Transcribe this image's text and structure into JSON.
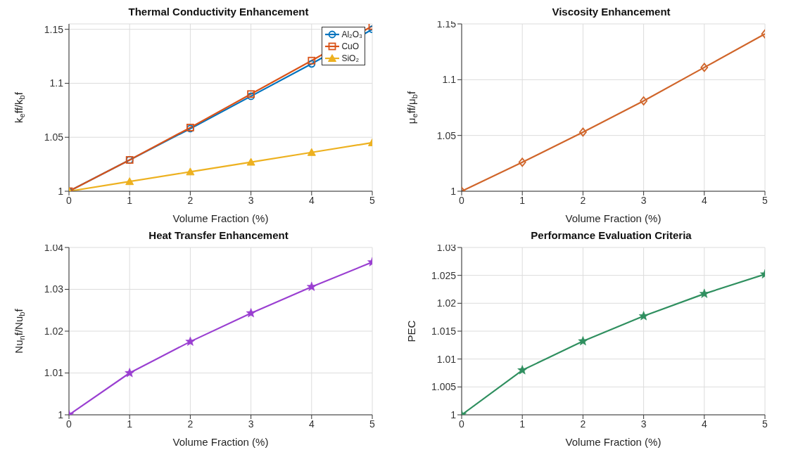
{
  "chart_data": [
    {
      "type": "line",
      "title": "Thermal Conductivity Enhancement",
      "xlabel": "Volume Fraction (%)",
      "ylabel": "k$_{e}$ff/k$_{b}$f",
      "x": [
        0,
        1,
        2,
        3,
        4,
        5
      ],
      "xlim": [
        0,
        5
      ],
      "xticks": [
        0,
        1,
        2,
        3,
        4,
        5
      ],
      "ylim": [
        1,
        1.155
      ],
      "yticks": [
        1,
        1.05,
        1.1,
        1.15
      ],
      "grid": true,
      "legend": "top right",
      "series": [
        {
          "name": "Al₂O₃",
          "color": "#0072bd",
          "marker": "circle",
          "values": [
            1,
            1.029,
            1.058,
            1.088,
            1.118,
            1.15
          ]
        },
        {
          "name": "CuO",
          "color": "#d95319",
          "marker": "square",
          "values": [
            1,
            1.029,
            1.059,
            1.09,
            1.121,
            1.153
          ]
        },
        {
          "name": "SiO₂",
          "color": "#edb120",
          "marker": "triangle",
          "values": [
            1,
            1.009,
            1.018,
            1.027,
            1.036,
            1.045
          ]
        }
      ]
    },
    {
      "type": "line",
      "title": "Viscosity Enhancement",
      "xlabel": "Volume Fraction (%)",
      "ylabel": "μ$_{e}$ff/μ$_{b}$f",
      "x": [
        0,
        1,
        2,
        3,
        4,
        5
      ],
      "xlim": [
        0,
        5
      ],
      "xticks": [
        0,
        1,
        2,
        3,
        4,
        5
      ],
      "ylim": [
        1,
        1.15
      ],
      "yticks": [
        1,
        1.05,
        1.1,
        1.15
      ],
      "grid": true,
      "series": [
        {
          "color": "#d0652a",
          "marker": "diamond",
          "values": [
            1,
            1.026,
            1.053,
            1.081,
            1.111,
            1.141
          ]
        }
      ]
    },
    {
      "type": "line",
      "title": "Heat Transfer Enhancement",
      "xlabel": "Volume Fraction (%)",
      "ylabel": "Nu$_{n}$f/Nu$_{b}$f",
      "x": [
        0,
        1,
        2,
        3,
        4,
        5
      ],
      "xlim": [
        0,
        5
      ],
      "xticks": [
        0,
        1,
        2,
        3,
        4,
        5
      ],
      "ylim": [
        1,
        1.04
      ],
      "yticks": [
        1,
        1.01,
        1.02,
        1.03,
        1.04
      ],
      "grid": true,
      "series": [
        {
          "color": "#9a3fd1",
          "marker": "star",
          "values": [
            1,
            1.01,
            1.0175,
            1.0243,
            1.0306,
            1.0365
          ]
        }
      ]
    },
    {
      "type": "line",
      "title": "Performance Evaluation Criteria",
      "xlabel": "Volume Fraction (%)",
      "ylabel": "PEC",
      "x": [
        0,
        1,
        2,
        3,
        4,
        5
      ],
      "xlim": [
        0,
        5
      ],
      "xticks": [
        0,
        1,
        2,
        3,
        4,
        5
      ],
      "ylim": [
        1,
        1.03
      ],
      "yticks": [
        1,
        1.005,
        1.01,
        1.015,
        1.02,
        1.025,
        1.03
      ],
      "grid": true,
      "series": [
        {
          "color": "#2f8f5f",
          "marker": "star",
          "values": [
            1,
            1.008,
            1.0132,
            1.0177,
            1.0217,
            1.0252
          ]
        }
      ]
    }
  ]
}
